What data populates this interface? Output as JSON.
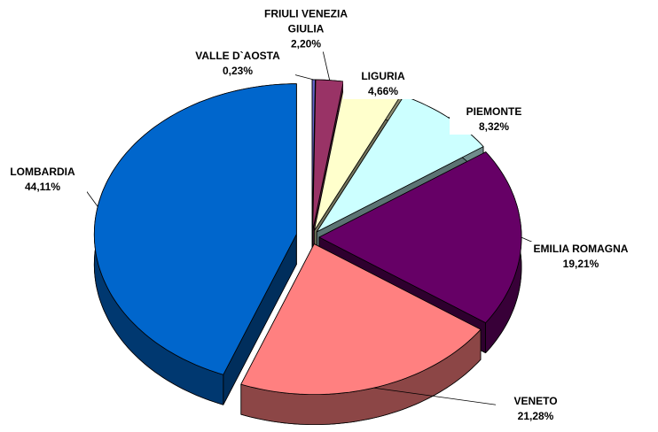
{
  "chart_data": {
    "type": "pie",
    "categories": [
      "VALLE D`AOSTA",
      "FRIULI VENEZIA GIULIA",
      "LIGURIA",
      "PIEMONTE",
      "EMILIA ROMAGNA",
      "VENETO",
      "LOMBARDIA"
    ],
    "values": [
      0.23,
      2.2,
      4.66,
      8.32,
      19.21,
      21.28,
      44.11
    ],
    "value_labels": [
      "0,23%",
      "2,20%",
      "4,66%",
      "8,32%",
      "19,21%",
      "21,28%",
      "44,11%"
    ],
    "colors": [
      "#6666cc",
      "#993366",
      "#ffffcc",
      "#ccffff",
      "#660066",
      "#ff8080",
      "#0066cc"
    ]
  }
}
